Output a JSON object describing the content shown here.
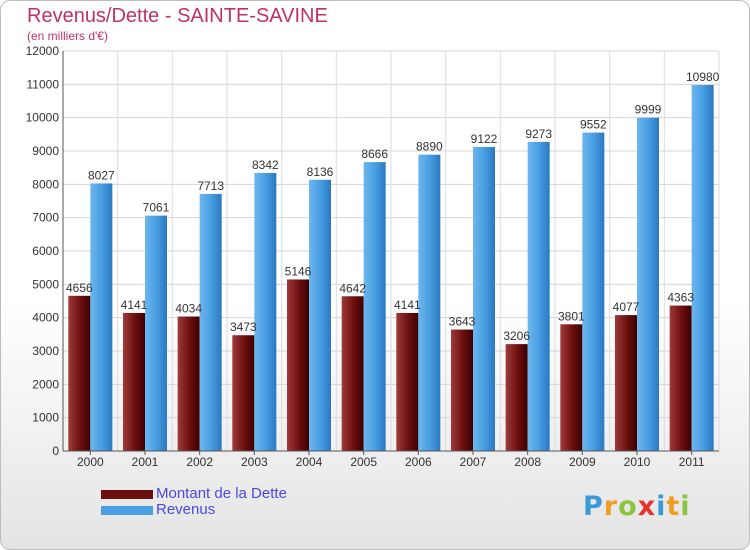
{
  "title": "Revenus/Dette - SAINTE-SAVINE",
  "subtitle": "(en milliers d'€)",
  "colors": {
    "dette": "#6b0f0f",
    "revenus": "#4a9fe3",
    "title": "#c0306a",
    "legend_text": "#4a4ae0"
  },
  "chart_data": {
    "type": "bar",
    "title": "Revenus/Dette - SAINTE-SAVINE",
    "ylabel": "(en milliers d'€)",
    "categories": [
      "2000",
      "2001",
      "2002",
      "2003",
      "2004",
      "2005",
      "2006",
      "2007",
      "2008",
      "2009",
      "2010",
      "2011"
    ],
    "series": [
      {
        "name": "Montant de la Dette",
        "values": [
          4656,
          4141,
          4034,
          3473,
          5146,
          4642,
          4141,
          3643,
          3206,
          3801,
          4077,
          4363
        ]
      },
      {
        "name": "Revenus",
        "values": [
          8027,
          7061,
          7713,
          8342,
          8136,
          8666,
          8890,
          9122,
          9273,
          9552,
          9999,
          10980
        ]
      }
    ],
    "yticks": [
      0,
      1000,
      2000,
      3000,
      4000,
      5000,
      6000,
      7000,
      8000,
      9000,
      10000,
      11000,
      12000
    ],
    "ylim": [
      0,
      12000
    ],
    "grid": true,
    "legend": "bottom-left"
  },
  "legend": {
    "items": [
      {
        "label": "Montant de la Dette",
        "color": "#6b0f0f"
      },
      {
        "label": "Revenus",
        "color": "#4a9fe3"
      }
    ]
  },
  "logo": {
    "letters": [
      "P",
      "r",
      "o",
      "x",
      "i",
      "t",
      "i"
    ]
  }
}
